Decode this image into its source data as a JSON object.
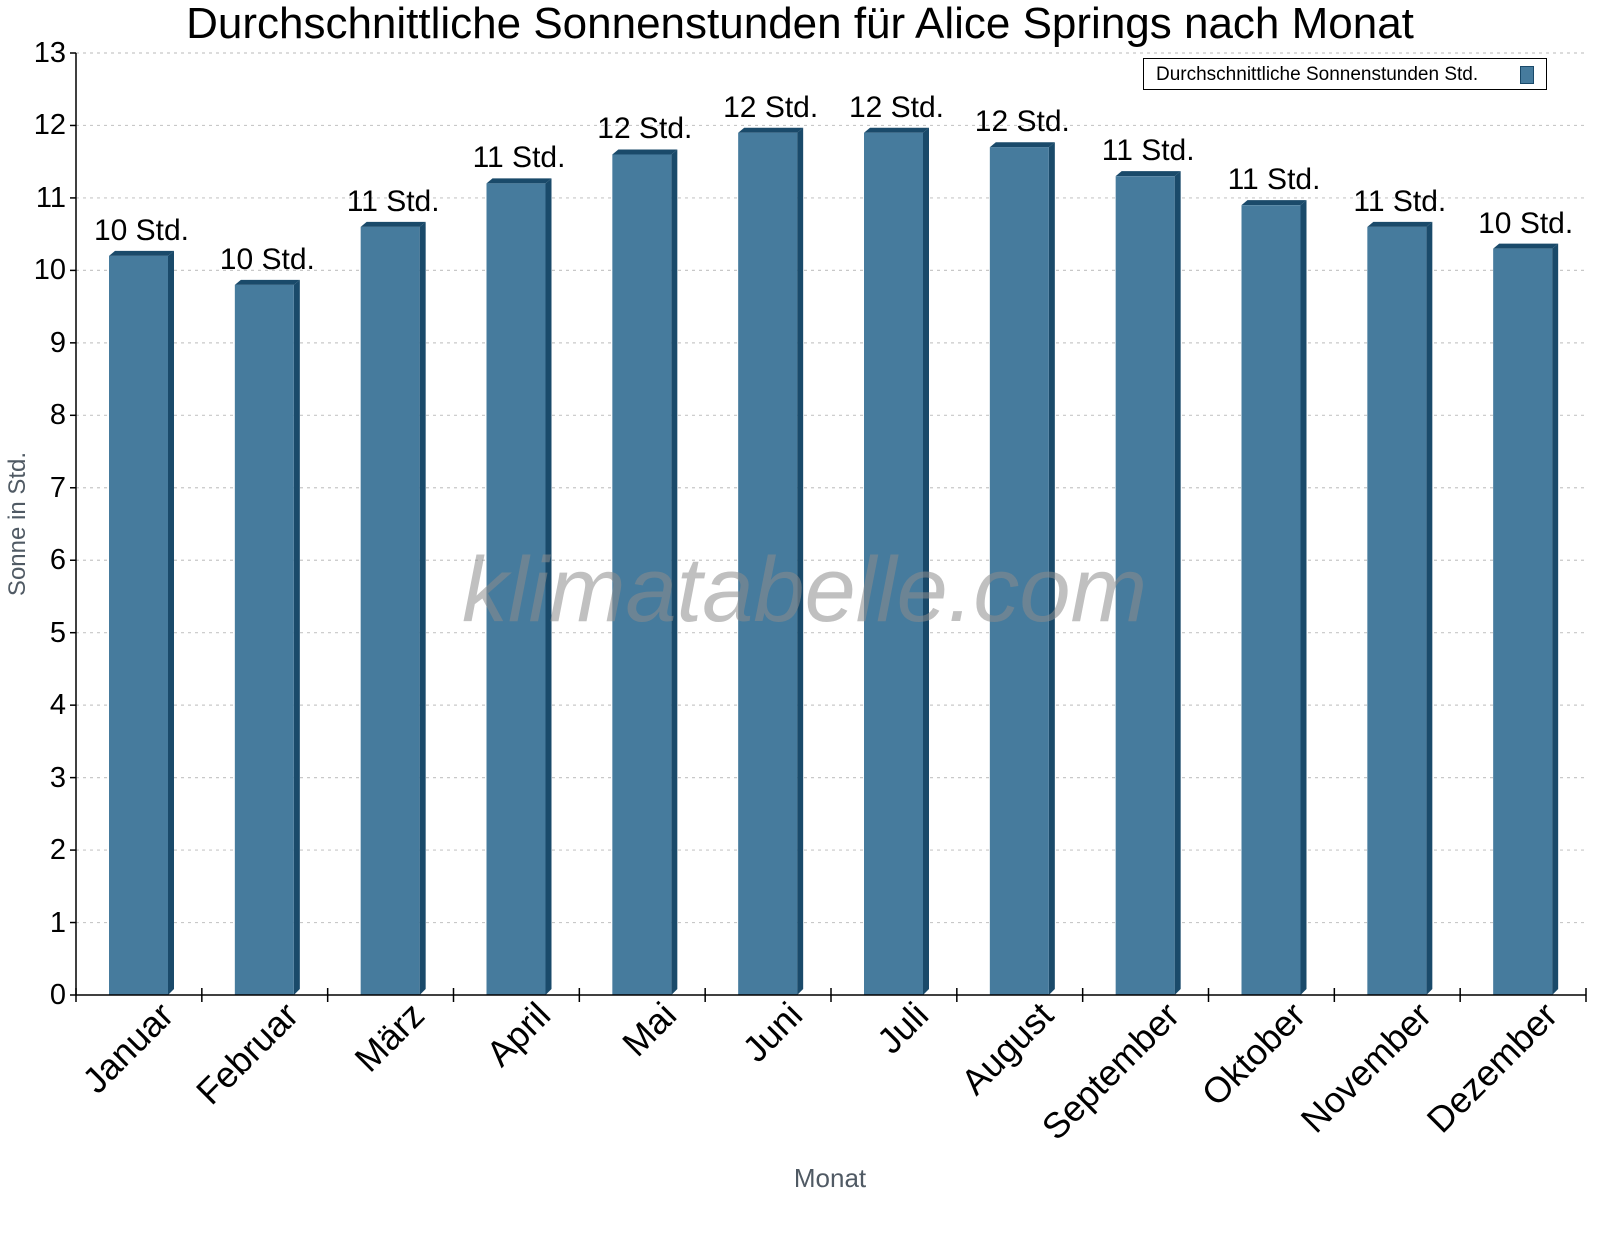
{
  "chart_data": {
    "type": "bar",
    "title": "Durchschnittliche Sonnenstunden für Alice Springs nach Monat",
    "xlabel": "Monat",
    "ylabel": "Sonne in Std.",
    "ylim": [
      0,
      13
    ],
    "yticks": [
      0,
      1,
      2,
      3,
      4,
      5,
      6,
      7,
      8,
      9,
      10,
      11,
      12,
      13
    ],
    "grid": true,
    "legend_position": "top-right",
    "categories": [
      "Januar",
      "Februar",
      "März",
      "April",
      "Mai",
      "Juni",
      "Juli",
      "August",
      "September",
      "Oktober",
      "November",
      "Dezember"
    ],
    "series": [
      {
        "name": "Durchschnittliche Sonnenstunden Std.",
        "color": "#467b9d",
        "values": [
          10.2,
          9.8,
          10.6,
          11.2,
          11.6,
          11.9,
          11.9,
          11.7,
          11.3,
          10.9,
          10.6,
          10.3
        ],
        "data_labels": [
          "10 Std.",
          "10 Std.",
          "11 Std.",
          "11 Std.",
          "12 Std.",
          "12 Std.",
          "12 Std.",
          "12 Std.",
          "11 Std.",
          "11 Std.",
          "11 Std.",
          "10 Std."
        ]
      }
    ],
    "watermark": "klimatabelle.com"
  },
  "colors": {
    "bar_front": "#467b9d",
    "bar_side": "#1a4a6a",
    "grid": "#c8c8c8",
    "axis": "#000000",
    "axis_title": "#505a64"
  }
}
